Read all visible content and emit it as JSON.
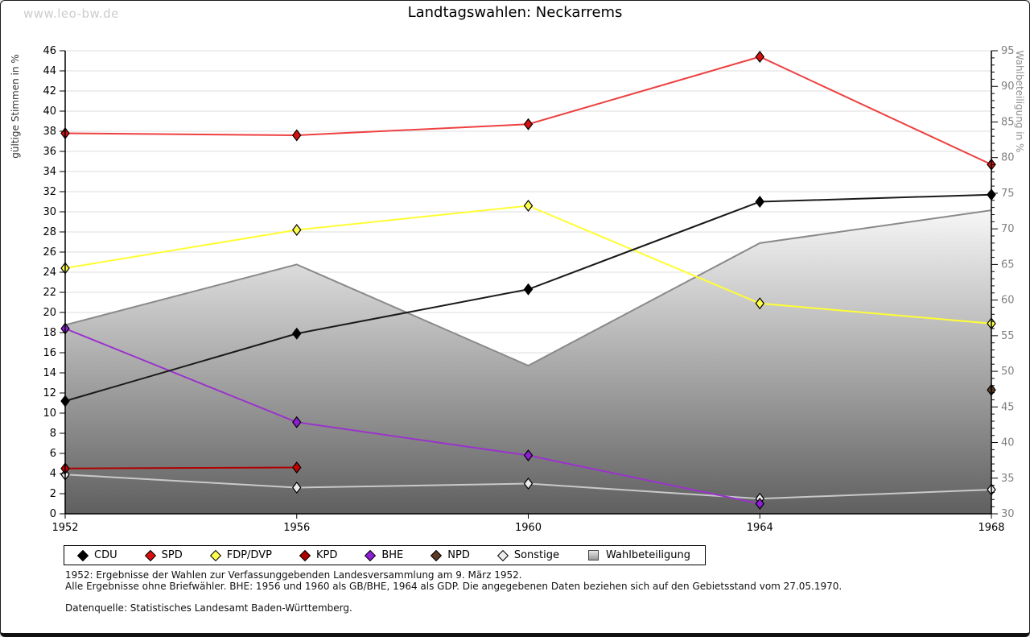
{
  "watermark": "www.leo-bw.de",
  "title": "Landtagswahlen: Neckarrems",
  "chart_data": {
    "type": "line",
    "title": "Landtagswahlen: Neckarrems",
    "x_categories": [
      "1952",
      "1956",
      "1960",
      "1964",
      "1968"
    ],
    "y_left": {
      "label": "gültige Stimmen in %",
      "min": 0,
      "max": 46,
      "tick_step": 2
    },
    "y_right": {
      "label": "Wahlbeteiligung in %",
      "min": 30,
      "max": 95,
      "tick_step": 5,
      "minor_tick_step": 1
    },
    "grid": true,
    "series": [
      {
        "name": "Sonstige",
        "axis": "left",
        "line_color": "#c9c9c9",
        "marker_color": "#ececec",
        "values": [
          3.9,
          2.6,
          3.0,
          1.5,
          2.4
        ]
      },
      {
        "name": "BHE",
        "axis": "left",
        "line_color": "#9a33cc",
        "marker_color": "#8d1fd4",
        "values": [
          18.4,
          9.1,
          5.8,
          1.0,
          null
        ]
      },
      {
        "name": "KPD",
        "axis": "left",
        "line_color": "#b00000",
        "marker_color": "#c40000",
        "values": [
          4.5,
          4.6,
          null,
          null,
          null
        ]
      },
      {
        "name": "FDP/DVP",
        "axis": "left",
        "line_color": "#ffff33",
        "marker_color": "#ffff4d",
        "values": [
          24.4,
          28.2,
          30.6,
          20.9,
          18.9
        ]
      },
      {
        "name": "SPD",
        "axis": "left",
        "line_color": "#ee4040",
        "marker_color": "#d80f0f",
        "values": [
          37.8,
          37.6,
          38.7,
          45.4,
          34.7
        ]
      },
      {
        "name": "CDU",
        "axis": "left",
        "line_color": "#1a1a1a",
        "marker_color": "#000000",
        "values": [
          11.2,
          17.9,
          22.3,
          31.0,
          31.7
        ]
      },
      {
        "name": "NPD",
        "axis": "left",
        "line_color": "#5d3b24",
        "marker_color": "#5d3b24",
        "values": [
          null,
          null,
          null,
          null,
          12.3
        ]
      }
    ],
    "turnout_area": {
      "name": "Wahlbeteiligung",
      "axis": "right",
      "values": [
        56.5,
        65.0,
        50.8,
        68.0,
        72.6
      ],
      "stroke": "#8a8a8a",
      "fill_top": "#f9f9f9",
      "fill_bottom": "#5e5e5e"
    }
  },
  "legend": {
    "items": [
      {
        "label": "CDU",
        "swatch": "diamond",
        "color": "#000000"
      },
      {
        "label": "SPD",
        "swatch": "diamond",
        "color": "#d80f0f"
      },
      {
        "label": "FDP/DVP",
        "swatch": "diamond",
        "color": "#ffff4d"
      },
      {
        "label": "KPD",
        "swatch": "diamond",
        "color": "#b00000"
      },
      {
        "label": "BHE",
        "swatch": "diamond",
        "color": "#8d1fd4"
      },
      {
        "label": "NPD",
        "swatch": "diamond",
        "color": "#5d3b24"
      },
      {
        "label": "Sonstige",
        "swatch": "diamond",
        "color": "#ececec"
      },
      {
        "label": "Wahlbeteiligung",
        "swatch": "square",
        "color": "#c0c0c0"
      }
    ]
  },
  "footnotes": {
    "line1": "1952: Ergebnisse der Wahlen zur Verfassunggebenden Landesversammlung am 9. März 1952.",
    "line2": "Alle Ergebnisse ohne Briefwähler. BHE: 1956 und 1960 als GB/BHE, 1964 als GDP. Die angegebenen Daten beziehen sich auf den Gebietsstand vom 27.05.1970.",
    "source": "Datenquelle: Statistisches Landesamt Baden-Württemberg."
  },
  "colors": {
    "grid": "#dddddd",
    "axis": "#000000",
    "right_tick_text": "#808080",
    "watermark": "#cccccc"
  }
}
